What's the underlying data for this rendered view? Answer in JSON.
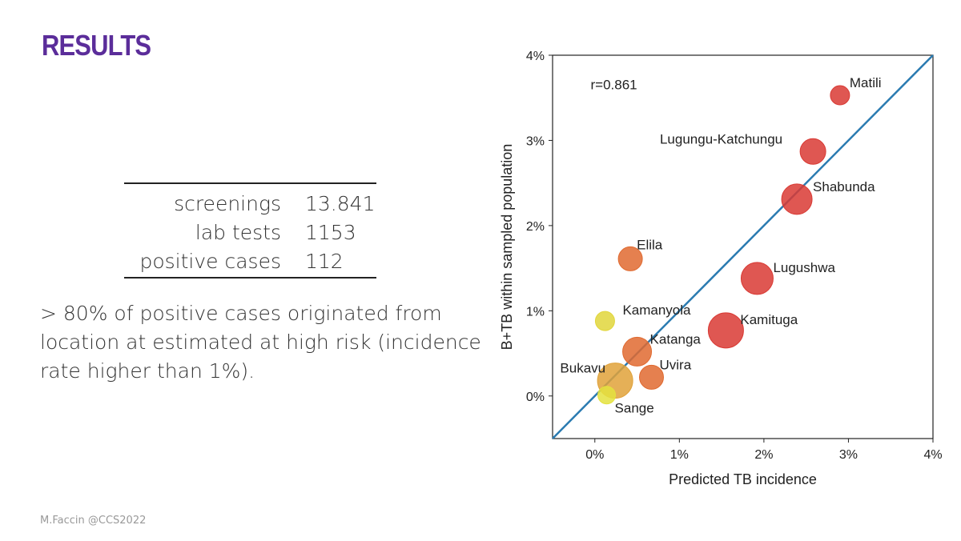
{
  "slide": {
    "title": "RESULTS",
    "stats": [
      {
        "label": "screenings",
        "value": "13.841"
      },
      {
        "label": "lab tests",
        "value": "1153"
      },
      {
        "label": "positive cases",
        "value": "112"
      }
    ],
    "summary": "> 80% of positive cases originated from location at estimated at high risk (incidence rate higher than 1%).",
    "footer": "M.Faccin @CCS2022"
  },
  "chart_data": {
    "type": "scatter",
    "xlabel": "Predicted TB incidence",
    "ylabel": "B+TB within sampled population",
    "xlim": [
      -0.5,
      4
    ],
    "ylim": [
      -0.5,
      4
    ],
    "xticks": [
      "0%",
      "1%",
      "2%",
      "3%",
      "4%"
    ],
    "yticks": [
      "0%",
      "1%",
      "2%",
      "3%",
      "4%"
    ],
    "annotation": "r=0.861",
    "diagonal": true,
    "line_color": "#2b7bb1",
    "points": [
      {
        "name": "Matili",
        "x": 2.9,
        "y": 3.53,
        "size": 12,
        "color": "#d93a34"
      },
      {
        "name": "Lugungu-Katchungu",
        "x": 2.58,
        "y": 2.87,
        "size": 16,
        "color": "#d93a34"
      },
      {
        "name": "Shabunda",
        "x": 2.39,
        "y": 2.31,
        "size": 19,
        "color": "#d93a34"
      },
      {
        "name": "Elila",
        "x": 0.42,
        "y": 1.61,
        "size": 15,
        "color": "#e06a30"
      },
      {
        "name": "Lugushwa",
        "x": 1.92,
        "y": 1.38,
        "size": 20,
        "color": "#d93a34"
      },
      {
        "name": "Kamanyola",
        "x": 0.12,
        "y": 0.88,
        "size": 12,
        "color": "#e1d63c"
      },
      {
        "name": "Kamituga",
        "x": 1.55,
        "y": 0.77,
        "size": 22,
        "color": "#d93a34"
      },
      {
        "name": "Katanga",
        "x": 0.5,
        "y": 0.52,
        "size": 18,
        "color": "#e06a30"
      },
      {
        "name": "Uvira",
        "x": 0.67,
        "y": 0.22,
        "size": 15,
        "color": "#e06a30"
      },
      {
        "name": "Bukavu",
        "x": 0.24,
        "y": 0.18,
        "size": 22,
        "color": "#e0a23a"
      },
      {
        "name": "Sange",
        "x": 0.14,
        "y": 0.01,
        "size": 11,
        "color": "#e4e23e"
      }
    ]
  }
}
